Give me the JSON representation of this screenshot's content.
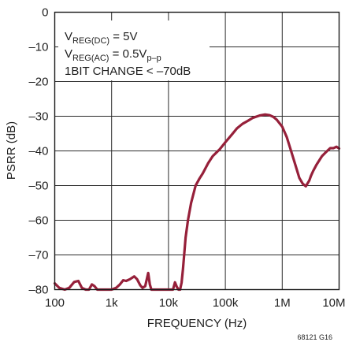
{
  "chart_data": {
    "type": "line",
    "xlabel": "FREQUENCY (Hz)",
    "ylabel": "PSRR (dB)",
    "x_scale": "log",
    "xlim": [
      100,
      10000000
    ],
    "ylim": [
      -80,
      0
    ],
    "x_ticks": [
      100,
      1000,
      10000,
      100000,
      1000000,
      10000000
    ],
    "x_tick_labels": [
      "100",
      "1k",
      "10k",
      "100k",
      "1M",
      "10M"
    ],
    "y_ticks": [
      0,
      -10,
      -20,
      -30,
      -40,
      -50,
      -60,
      -70,
      -80
    ],
    "y_tick_labels": [
      "0",
      "–10",
      "–20",
      "–30",
      "–40",
      "–50",
      "–60",
      "–70",
      "–80"
    ],
    "grid": true,
    "line_color": "#96203a",
    "annotations": [
      {
        "main": "V",
        "sub": "REG(DC)",
        "rest": " = 5V"
      },
      {
        "main": "V",
        "sub": "REG(AC)",
        "rest": " = 0.5V",
        "sub2": "p–p"
      },
      {
        "main": "1BIT CHANGE < –70dB"
      }
    ],
    "figure_id": "68121 G16",
    "series": [
      {
        "x": [
          100,
          120,
          150,
          180,
          220,
          260,
          300,
          350,
          400,
          450,
          500,
          560,
          600,
          700,
          800,
          900,
          1000,
          1200,
          1400,
          1600,
          1800,
          2100,
          2500,
          2800,
          3200,
          3500,
          3900,
          4400,
          4700,
          5000,
          5200,
          5400,
          5600,
          5800,
          6000,
          6200,
          6500,
          7000,
          8000,
          9000,
          10000,
          11000,
          12000,
          13000,
          14000,
          15000,
          16000,
          17000,
          18000,
          20000,
          22000,
          25000,
          30000,
          35000,
          40000,
          50000,
          60000,
          80000,
          100000,
          130000,
          160000,
          200000,
          250000,
          300000,
          400000,
          500000,
          600000,
          700000,
          800000,
          1000000,
          1200000,
          1400000,
          1700000,
          2000000,
          2300000,
          2600000,
          3000000,
          3200000,
          3500000,
          4000000,
          5000000,
          6000000,
          7000000,
          8000000,
          9000000,
          10000000
        ],
        "y": [
          -78.2,
          -79.5,
          -80,
          -79.5,
          -77.8,
          -77.5,
          -79.5,
          -80,
          -80,
          -78.5,
          -79,
          -80,
          -80,
          -80,
          -80,
          -80,
          -80,
          -79.5,
          -78.5,
          -77.3,
          -77.5,
          -77,
          -76.2,
          -77,
          -78.8,
          -79.5,
          -79,
          -75.2,
          -78.5,
          -80,
          -80,
          -80,
          -80,
          -80,
          -80,
          -80,
          -80,
          -80,
          -80,
          -80,
          -80,
          -80,
          -80,
          -77.9,
          -79.2,
          -80,
          -80,
          -78,
          -74,
          -65,
          -60,
          -55,
          -50,
          -48,
          -46.5,
          -43.5,
          -41.5,
          -39.5,
          -37.5,
          -35.3,
          -33.5,
          -32.2,
          -31.3,
          -30.5,
          -29.8,
          -29.5,
          -29.7,
          -30.2,
          -31,
          -33,
          -36,
          -39.5,
          -44,
          -47.8,
          -49.5,
          -50.2,
          -48.5,
          -47.2,
          -45.8,
          -44,
          -41.5,
          -40.2,
          -39.2,
          -39.2,
          -38.8,
          -39.3
        ]
      }
    ]
  }
}
